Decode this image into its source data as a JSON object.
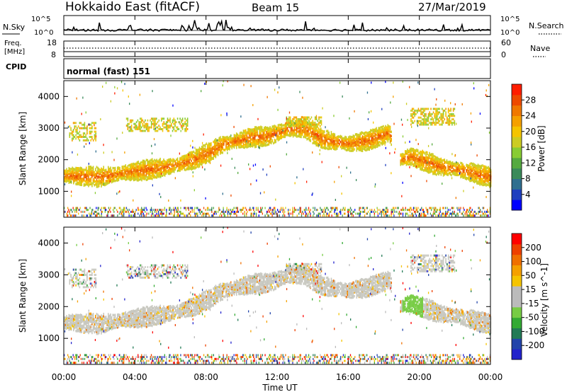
{
  "header": {
    "station": "Hokkaido East (fitACF)",
    "beam": "Beam 15",
    "date": "27/Mar/2019"
  },
  "noise_panel": {
    "left_label": "N.Sky",
    "right_label": "N.Search",
    "left_ticks": [
      "10^5",
      "10^0"
    ],
    "right_ticks": [
      "10^5",
      "10^0"
    ]
  },
  "freq_panel": {
    "left_label_top": "Freq.",
    "left_label_bottom": "[MHz]",
    "right_label": "Nave",
    "left_ticks": [
      "18",
      "8"
    ],
    "right_ticks": [
      "60",
      "0"
    ]
  },
  "cpid_panel": {
    "label": "CPID",
    "value": "normal (fast) 151"
  },
  "axes": {
    "ylabel": "Slant Range [km]",
    "xlabel": "Time UT",
    "yticks": [
      "4000",
      "3000",
      "2000",
      "1000"
    ],
    "xticks": [
      "00:00",
      "04:00",
      "08:00",
      "12:00",
      "16:00",
      "20:00",
      "00:00"
    ]
  },
  "chart_data": [
    {
      "type": "heatmap",
      "title": "Power [dB]",
      "x_range_hours": [
        0,
        24
      ],
      "y_range_km": [
        180,
        4500
      ],
      "colorbar": {
        "label": "Power [dB]",
        "ticks": [
          "28",
          "24",
          "20",
          "16",
          "12",
          "8",
          "4"
        ],
        "colors": [
          "#0000ff",
          "#1f3fbf",
          "#2f6f8f",
          "#3a8a5a",
          "#55aa40",
          "#88cc33",
          "#cccc22",
          "#f5c400",
          "#f5a000",
          "#f07800",
          "#ee4a00",
          "#ff1e00"
        ]
      },
      "bands": [
        {
          "name": "near-range echoes",
          "x": [
            0,
            24
          ],
          "y_km": [
            [
              200,
              480
            ]
          ],
          "level": 0.4
        },
        {
          "name": "main band",
          "x": [
            0,
            24
          ],
          "y_km": [
            [
              1300,
              1700
            ],
            [
              1250,
              1650
            ],
            [
              1400,
              1800
            ],
            [
              2200,
              2700
            ],
            [
              2600,
              3000
            ],
            [
              2700,
              3100
            ],
            [
              2300,
              2800
            ],
            [
              2500,
              2900
            ],
            [
              1900,
              2400
            ],
            [
              1500,
              1900
            ],
            [
              1300,
              1700
            ]
          ],
          "level": 0.85
        },
        {
          "name": "far echoes 00-02",
          "x": [
            0,
            2
          ],
          "y_km": [
            [
              2500,
              3200
            ]
          ],
          "level": 0.45
        },
        {
          "name": "far echoes 04-07",
          "x": [
            3.5,
            7
          ],
          "y_km": [
            [
              2900,
              3300
            ]
          ],
          "level": 0.5
        },
        {
          "name": "far echoes 19.5-22",
          "x": [
            19.5,
            22
          ],
          "y_km": [
            [
              3100,
              3600
            ]
          ],
          "level": 0.6
        }
      ]
    },
    {
      "type": "heatmap",
      "title": "Velocity [m s^-1]",
      "x_range_hours": [
        0,
        24
      ],
      "y_range_km": [
        180,
        4500
      ],
      "colorbar": {
        "label": "Velocity [m s^-1]",
        "ticks": [
          "200",
          "100",
          "50",
          "15",
          "-15",
          "-50",
          "-100",
          "-200"
        ],
        "colors": [
          "#2222cc",
          "#2244aa",
          "#227a55",
          "#33aa33",
          "#77cc44",
          "#bbbbbb",
          "#bbbbbb",
          "#f5c400",
          "#f5a000",
          "#f07000",
          "#ee4000",
          "#ff0000"
        ]
      }
    }
  ]
}
